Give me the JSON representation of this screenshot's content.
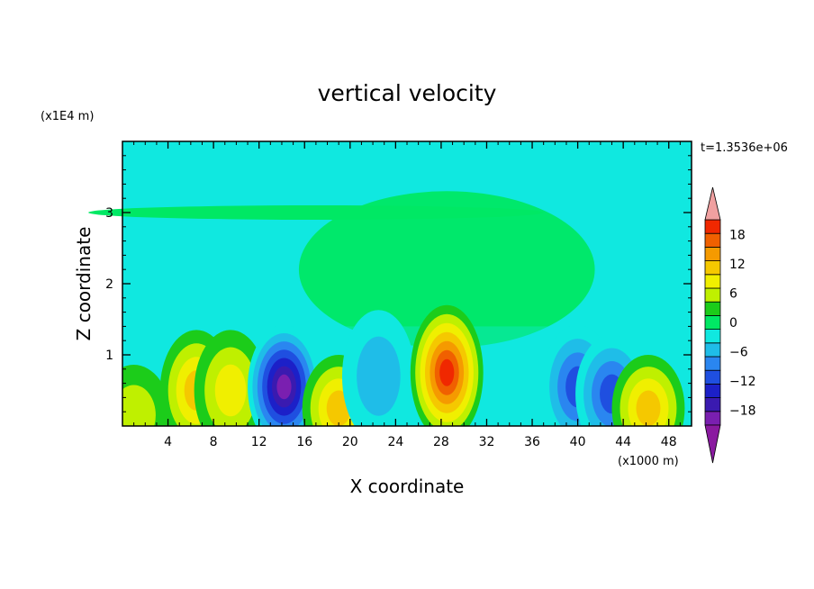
{
  "chart_data": {
    "type": "heatmap",
    "title": "vertical velocity",
    "xlabel": "X coordinate",
    "ylabel": "Z coordinate",
    "x_unit": "(x1000 m)",
    "y_unit": "(x1E4 m)",
    "time_label": "t=1.3536e+06",
    "xlim": [
      0,
      50
    ],
    "ylim": [
      0,
      4
    ],
    "x_ticks": [
      "4",
      "8",
      "12",
      "16",
      "20",
      "24",
      "28",
      "32",
      "36",
      "40",
      "44",
      "48"
    ],
    "y_ticks": [
      "1",
      "2",
      "3"
    ],
    "colorbar": {
      "min": -21,
      "max": 21,
      "step": 3,
      "labels": [
        "18",
        "12",
        "6",
        "0",
        "−6",
        "−12",
        "−18"
      ],
      "level_colors": [
        "#7a1fb0",
        "#3a1ab0",
        "#1c20c8",
        "#1f4fe0",
        "#2a86f0",
        "#1fbde8",
        "#10e8e0",
        "#00e864",
        "#1ccc1a",
        "#bff000",
        "#f0ef00",
        "#f5c800",
        "#f59a00",
        "#f06000",
        "#f02800"
      ],
      "under_color": "#8a1aa0",
      "over_color": "#f0a0a0"
    },
    "features": [
      {
        "x": 6.5,
        "z": 0.5,
        "w": 0.6
      },
      {
        "x": 9.5,
        "z": 0.5,
        "w": 0.45
      },
      {
        "x": 14.2,
        "z": 0.55,
        "w": -1.0
      },
      {
        "x": 19.0,
        "z": 0.25,
        "w": 0.5
      },
      {
        "x": 22.5,
        "z": 0.7,
        "w": -0.35
      },
      {
        "x": 28.5,
        "z": 0.75,
        "w": 1.0
      },
      {
        "x": 40.0,
        "z": 0.55,
        "w": -0.5
      },
      {
        "x": 43.0,
        "z": 0.45,
        "w": -0.55
      },
      {
        "x": 46.2,
        "z": 0.25,
        "w": 0.5
      },
      {
        "x": 1.0,
        "z": 0.15,
        "w": 0.3
      }
    ]
  }
}
